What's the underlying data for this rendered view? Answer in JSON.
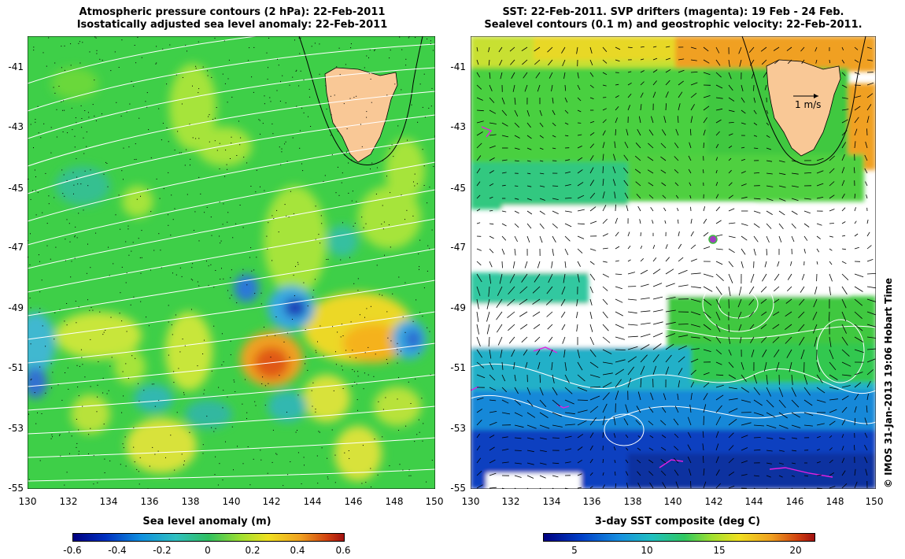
{
  "left_panel": {
    "title_line1": "Atmospheric pressure contours (2 hPa): 22-Feb-2011",
    "title_line2": "Isostatically adjusted sea level anomaly: 22-Feb-2011",
    "y_ticks": [
      "-41",
      "-43",
      "-45",
      "-47",
      "-49",
      "-51",
      "-53",
      "-55"
    ],
    "x_ticks": [
      "130",
      "132",
      "134",
      "136",
      "138",
      "140",
      "142",
      "144",
      "146",
      "148",
      "150"
    ],
    "colorbar": {
      "title": "Sea level anomaly (m)",
      "ticks": [
        "-0.6",
        "-0.4",
        "-0.2",
        "0",
        "0.2",
        "0.4",
        "0.6"
      ]
    }
  },
  "right_panel": {
    "title_line1": "SST: 22-Feb-2011. SVP drifters (magenta): 19 Feb - 24 Feb.",
    "title_line2": "Sealevel contours (0.1 m) and geostrophic velocity: 22-Feb-2011.",
    "y_ticks": [
      "-41",
      "-43",
      "-45",
      "-47",
      "-49",
      "-51",
      "-53",
      "-55"
    ],
    "x_ticks": [
      "130",
      "132",
      "134",
      "136",
      "138",
      "140",
      "142",
      "144",
      "146",
      "148",
      "150"
    ],
    "scale_label": "1 m/s",
    "colorbar": {
      "title": "3-day SST composite (deg C)",
      "ticks": [
        "5",
        "10",
        "15",
        "20"
      ]
    }
  },
  "credit": "© IMOS 31-Jan-2013 19:06 Hobart Time",
  "colors": {
    "land": "#f9c896",
    "ocean_green": "#3ecf48",
    "contour_white": "#ffffff",
    "drifter_magenta": "#e020e0"
  }
}
